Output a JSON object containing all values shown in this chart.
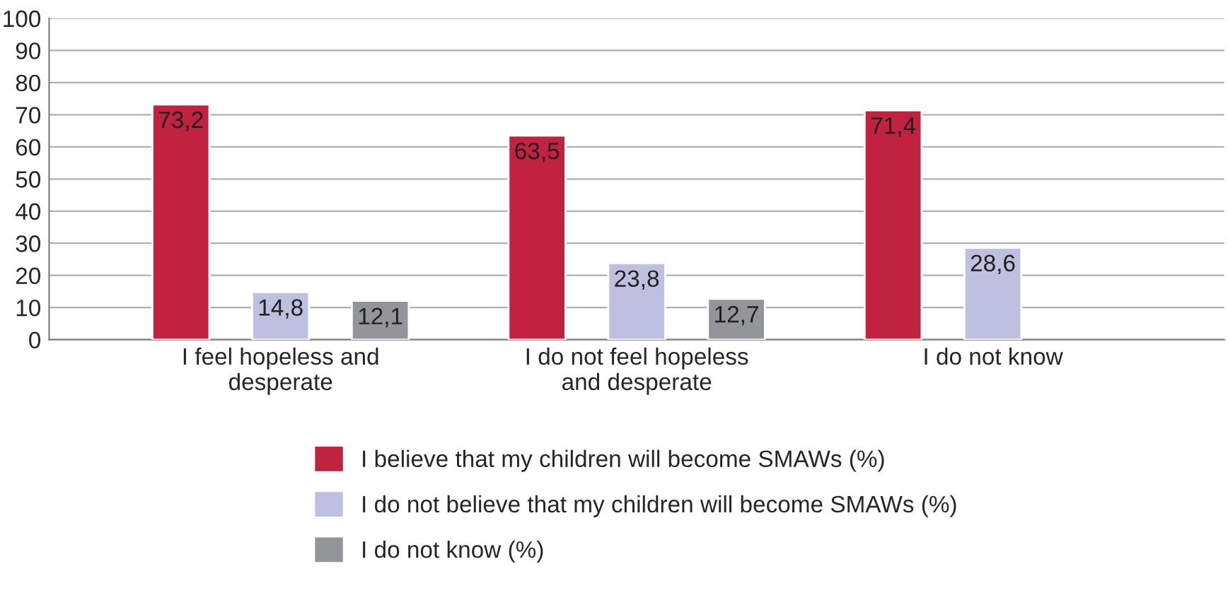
{
  "chart_data": {
    "type": "bar",
    "categories": [
      "I feel hopeless and\ndesperate",
      "I do not feel hopeless\nand desperate",
      "I do not know"
    ],
    "series": [
      {
        "name": "I believe that my children will become SMAWs (%)",
        "color": "#c0223f",
        "values": [
          73.2,
          63.5,
          71.4
        ],
        "value_labels": [
          "73,2",
          "63,5",
          "71,4"
        ]
      },
      {
        "name": "I do not believe that my children will become SMAWs (%)",
        "color": "#bfbfdf",
        "values": [
          14.8,
          23.8,
          28.6
        ],
        "value_labels": [
          "14,8",
          "23,8",
          "28,6"
        ]
      },
      {
        "name": "I do not know (%)",
        "color": "#939598",
        "values": [
          12.1,
          12.7,
          null
        ],
        "value_labels": [
          "12,1",
          "12,7",
          null
        ]
      }
    ],
    "ylim": [
      0,
      100
    ],
    "yticks": [
      0,
      10,
      20,
      30,
      40,
      50,
      60,
      70,
      80,
      90,
      100
    ],
    "grid": "y",
    "legend": "bottom"
  }
}
